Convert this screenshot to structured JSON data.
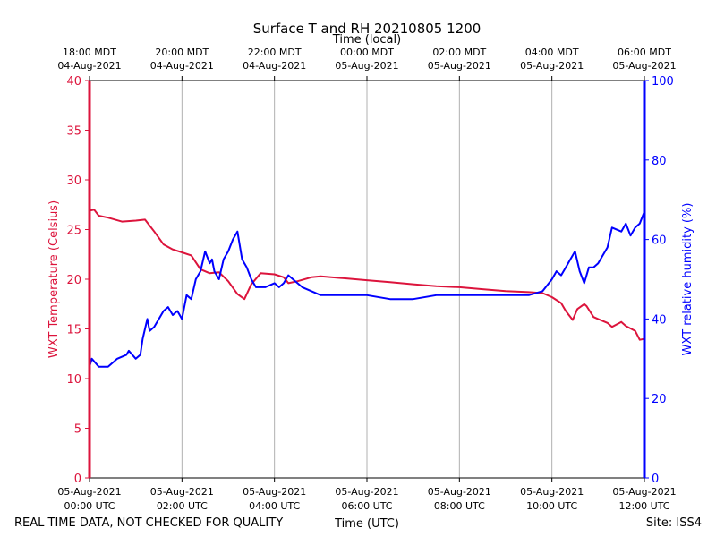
{
  "chart_data": {
    "type": "line",
    "title": "Surface T and RH 20210805 1200",
    "top_axis_label": "Time (local)",
    "xlabel": "Time (UTC)",
    "ylabel_left": "WXT Temperature (Celsius)",
    "ylabel_right": "WXT relative humidity (%)",
    "footer_left": "REAL TIME DATA, NOT CHECKED FOR QUALITY",
    "footer_right": "Site: ISS4",
    "x_range_hours_utc": [
      0,
      12
    ],
    "ylim_left": [
      0,
      40
    ],
    "ylim_right": [
      0,
      100
    ],
    "left_ticks": [
      0,
      5,
      10,
      15,
      20,
      25,
      30,
      35,
      40
    ],
    "right_ticks": [
      0,
      20,
      40,
      60,
      80,
      100
    ],
    "grid": "vertical",
    "bottom_ticks": [
      {
        "hour": 0,
        "line1": "05-Aug-2021",
        "line2": "00:00 UTC"
      },
      {
        "hour": 2,
        "line1": "05-Aug-2021",
        "line2": "02:00 UTC"
      },
      {
        "hour": 4,
        "line1": "05-Aug-2021",
        "line2": "04:00 UTC"
      },
      {
        "hour": 6,
        "line1": "05-Aug-2021",
        "line2": "06:00 UTC"
      },
      {
        "hour": 8,
        "line1": "05-Aug-2021",
        "line2": "08:00 UTC"
      },
      {
        "hour": 10,
        "line1": "05-Aug-2021",
        "line2": "10:00 UTC"
      },
      {
        "hour": 12,
        "line1": "05-Aug-2021",
        "line2": "12:00 UTC"
      }
    ],
    "top_ticks": [
      {
        "hour": 0,
        "line1": "18:00 MDT",
        "line2": "04-Aug-2021"
      },
      {
        "hour": 2,
        "line1": "20:00 MDT",
        "line2": "04-Aug-2021"
      },
      {
        "hour": 4,
        "line1": "22:00 MDT",
        "line2": "04-Aug-2021"
      },
      {
        "hour": 6,
        "line1": "00:00 MDT",
        "line2": "05-Aug-2021"
      },
      {
        "hour": 8,
        "line1": "02:00 MDT",
        "line2": "05-Aug-2021"
      },
      {
        "hour": 10,
        "line1": "04:00 MDT",
        "line2": "05-Aug-2021"
      },
      {
        "hour": 12,
        "line1": "06:00 MDT",
        "line2": "05-Aug-2021"
      }
    ],
    "series": [
      {
        "name": "WXT Temperature",
        "axis": "left",
        "color": "#dc143c",
        "x": [
          0,
          0.1,
          0.2,
          0.4,
          0.7,
          1.0,
          1.2,
          1.4,
          1.6,
          1.8,
          2.0,
          2.2,
          2.4,
          2.6,
          2.8,
          3.0,
          3.2,
          3.35,
          3.5,
          3.7,
          4.0,
          4.2,
          4.3,
          4.5,
          4.8,
          5.0,
          5.5,
          6.0,
          6.5,
          7.0,
          7.5,
          8.0,
          8.5,
          9.0,
          9.5,
          9.8,
          10.0,
          10.2,
          10.3,
          10.45,
          10.55,
          10.7,
          10.75,
          10.9,
          11.0,
          11.2,
          11.3,
          11.5,
          11.6,
          11.8,
          11.9,
          12.0
        ],
        "values": [
          26.9,
          27.0,
          26.4,
          26.2,
          25.8,
          25.9,
          26.0,
          24.8,
          23.5,
          23.0,
          22.7,
          22.4,
          21.0,
          20.6,
          20.7,
          19.8,
          18.5,
          18.0,
          19.5,
          20.6,
          20.5,
          20.2,
          19.6,
          19.8,
          20.2,
          20.3,
          20.1,
          19.9,
          19.7,
          19.5,
          19.3,
          19.2,
          19.0,
          18.8,
          18.7,
          18.6,
          18.2,
          17.6,
          16.8,
          15.9,
          17.0,
          17.5,
          17.3,
          16.2,
          16.0,
          15.6,
          15.2,
          15.7,
          15.3,
          14.8,
          13.9,
          14.0
        ]
      },
      {
        "name": "WXT relative humidity",
        "axis": "right",
        "color": "#0000ff",
        "x": [
          0,
          0.05,
          0.2,
          0.4,
          0.6,
          0.8,
          0.85,
          1.0,
          1.1,
          1.15,
          1.25,
          1.3,
          1.4,
          1.6,
          1.7,
          1.8,
          1.9,
          2.0,
          2.1,
          2.2,
          2.3,
          2.4,
          2.5,
          2.6,
          2.65,
          2.7,
          2.8,
          2.9,
          3.0,
          3.1,
          3.2,
          3.3,
          3.35,
          3.4,
          3.5,
          3.6,
          3.8,
          4.0,
          4.1,
          4.2,
          4.3,
          4.4,
          4.6,
          5.0,
          5.5,
          6.0,
          6.5,
          7.0,
          7.5,
          8.0,
          8.5,
          9.0,
          9.5,
          9.8,
          10.0,
          10.1,
          10.2,
          10.3,
          10.4,
          10.5,
          10.6,
          10.7,
          10.8,
          10.9,
          11.0,
          11.1,
          11.2,
          11.3,
          11.5,
          11.6,
          11.7,
          11.8,
          11.9,
          12.0
        ],
        "values": [
          28,
          30,
          28,
          28,
          30,
          31,
          32,
          30,
          31,
          35,
          40,
          37,
          38,
          42,
          43,
          41,
          42,
          40,
          46,
          45,
          50,
          52,
          57,
          54,
          55,
          52,
          50,
          55,
          57,
          60,
          62,
          55,
          54,
          53,
          50,
          48,
          48,
          49,
          48,
          49,
          51,
          50,
          48,
          46,
          46,
          46,
          45,
          45,
          46,
          46,
          46,
          46,
          46,
          47,
          50,
          52,
          51,
          53,
          55,
          57,
          52,
          49,
          53,
          53,
          54,
          56,
          58,
          63,
          62,
          64,
          61,
          63,
          64,
          67
        ]
      }
    ]
  }
}
